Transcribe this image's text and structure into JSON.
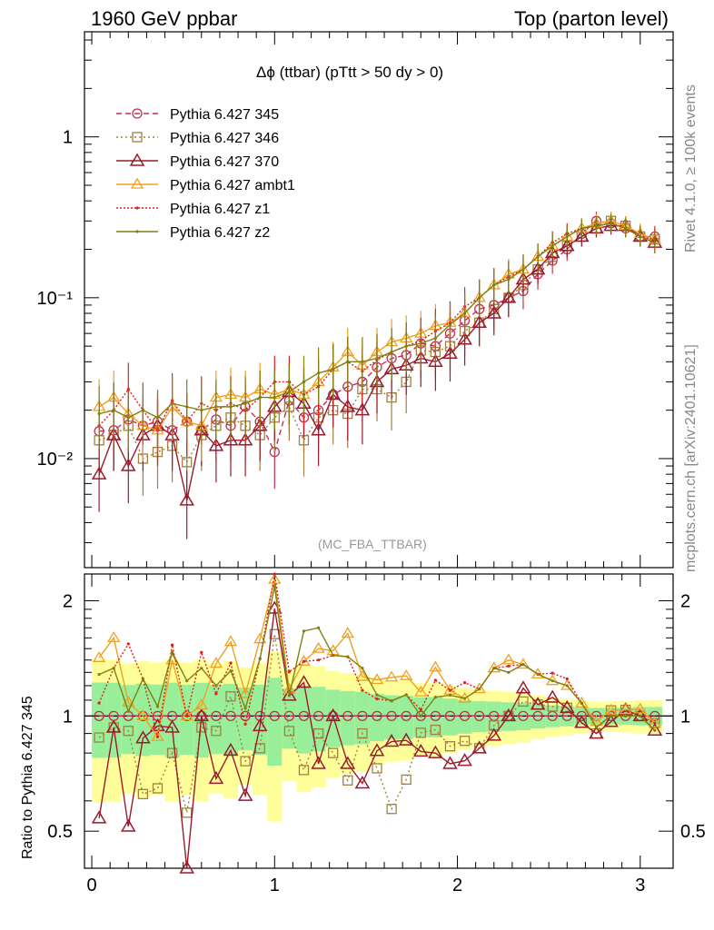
{
  "header": {
    "left": "1960 GeV ppbar",
    "right": "Top (parton level)"
  },
  "side_labels": {
    "upper": "Rivet 4.1.0, ≥ 100k events",
    "lower": "mcplots.cern.ch [arXiv:2401.10621]"
  },
  "chart_data": {
    "type": "line",
    "title": "Δϕ (ttbar) (pTtt > 50 dy > 0)",
    "watermark": "(MC_FBA_TTBAR)",
    "xlabel": "",
    "ylabel": "",
    "ratio_ylabel": "Ratio to Pythia 6.427 345",
    "xlim": [
      -0.04,
      3.18
    ],
    "ylim_log": [
      0.0021,
      4.5
    ],
    "ratio_ylim": [
      0.4,
      2.35
    ],
    "x_ticks": [
      "0",
      "1",
      "2",
      "3"
    ],
    "y_ticks": [
      "10⁻²",
      "10⁻¹",
      "1"
    ],
    "ratio_ticks": [
      "0.5",
      "1",
      "2"
    ],
    "x": [
      0.04,
      0.12,
      0.2,
      0.28,
      0.36,
      0.44,
      0.52,
      0.6,
      0.68,
      0.76,
      0.84,
      0.92,
      1.0,
      1.08,
      1.16,
      1.24,
      1.32,
      1.4,
      1.48,
      1.56,
      1.64,
      1.72,
      1.8,
      1.88,
      1.96,
      2.04,
      2.12,
      2.2,
      2.28,
      2.36,
      2.44,
      2.52,
      2.6,
      2.68,
      2.76,
      2.84,
      2.92,
      3.0,
      3.08
    ],
    "series": [
      {
        "name": "Pythia 6.427 345",
        "color": "#c03050",
        "dash": "6,4",
        "marker": "circle",
        "values": [
          0.0148,
          0.015,
          0.0175,
          0.016,
          0.017,
          0.015,
          0.017,
          0.015,
          0.0175,
          0.016,
          0.021,
          0.017,
          0.011,
          0.023,
          0.018,
          0.02,
          0.025,
          0.028,
          0.03,
          0.037,
          0.042,
          0.044,
          0.052,
          0.05,
          0.06,
          0.072,
          0.085,
          0.09,
          0.1,
          0.11,
          0.14,
          0.17,
          0.2,
          0.25,
          0.3,
          0.29,
          0.27,
          0.24,
          0.24
        ]
      },
      {
        "name": "Pythia 6.427 346",
        "color": "#a08040",
        "dash": "2,3",
        "marker": "square",
        "values": [
          0.013,
          0.014,
          0.016,
          0.01,
          0.011,
          0.012,
          0.0095,
          0.014,
          0.016,
          0.018,
          0.016,
          0.014,
          0.018,
          0.021,
          0.013,
          0.018,
          0.02,
          0.019,
          0.027,
          0.027,
          0.024,
          0.03,
          0.047,
          0.046,
          0.05,
          0.062,
          0.07,
          0.085,
          0.1,
          0.12,
          0.15,
          0.18,
          0.21,
          0.24,
          0.27,
          0.3,
          0.28,
          0.24,
          0.23
        ]
      },
      {
        "name": "Pythia 6.427 370",
        "color": "#9c1a2c",
        "dash": "",
        "marker": "triangle-open",
        "values": [
          0.008,
          0.014,
          0.009,
          0.014,
          0.016,
          0.014,
          0.0055,
          0.015,
          0.012,
          0.013,
          0.013,
          0.016,
          0.021,
          0.026,
          0.022,
          0.015,
          0.025,
          0.021,
          0.02,
          0.03,
          0.036,
          0.038,
          0.042,
          0.04,
          0.045,
          0.055,
          0.07,
          0.08,
          0.1,
          0.13,
          0.15,
          0.19,
          0.21,
          0.24,
          0.27,
          0.28,
          0.28,
          0.24,
          0.22
        ]
      },
      {
        "name": "Pythia 6.427 ambt1",
        "color": "#f0a020",
        "dash": "",
        "marker": "triangle-filled",
        "values": [
          0.021,
          0.024,
          0.019,
          0.016,
          0.015,
          0.021,
          0.017,
          0.016,
          0.024,
          0.025,
          0.024,
          0.027,
          0.025,
          0.027,
          0.025,
          0.03,
          0.037,
          0.046,
          0.038,
          0.046,
          0.053,
          0.056,
          0.06,
          0.067,
          0.07,
          0.08,
          0.1,
          0.12,
          0.14,
          0.15,
          0.18,
          0.21,
          0.24,
          0.27,
          0.29,
          0.3,
          0.28,
          0.25,
          0.23
        ]
      },
      {
        "name": "Pythia 6.427 z1",
        "color": "#dd2020",
        "dash": "2,2",
        "marker": "dot",
        "values": [
          0.016,
          0.02,
          0.027,
          0.02,
          0.015,
          0.023,
          0.017,
          0.022,
          0.02,
          0.022,
          0.02,
          0.024,
          0.03,
          0.03,
          0.025,
          0.028,
          0.036,
          0.04,
          0.035,
          0.041,
          0.046,
          0.05,
          0.054,
          0.062,
          0.07,
          0.088,
          0.1,
          0.12,
          0.135,
          0.15,
          0.18,
          0.22,
          0.25,
          0.27,
          0.28,
          0.29,
          0.27,
          0.24,
          0.23
        ]
      },
      {
        "name": "Pythia 6.427 z2",
        "color": "#808010",
        "dash": "",
        "marker": "dot",
        "values": [
          0.019,
          0.02,
          0.018,
          0.02,
          0.018,
          0.022,
          0.021,
          0.02,
          0.021,
          0.021,
          0.022,
          0.024,
          0.024,
          0.026,
          0.03,
          0.034,
          0.036,
          0.04,
          0.04,
          0.042,
          0.046,
          0.05,
          0.052,
          0.056,
          0.068,
          0.08,
          0.1,
          0.12,
          0.13,
          0.15,
          0.18,
          0.21,
          0.24,
          0.27,
          0.28,
          0.29,
          0.27,
          0.24,
          0.22
        ]
      }
    ]
  }
}
